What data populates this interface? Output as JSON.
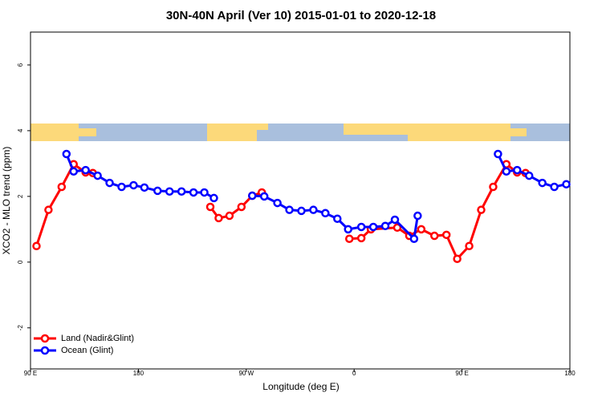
{
  "chart_data": {
    "type": "line",
    "title": "30N-40N April (Ver 10)   2015-01-01 to 2020-12-18",
    "x_label": "Longitude (deg E)",
    "y_label": "XCO2 - MLO trend (ppm)",
    "xlim": [
      90,
      540
    ],
    "xticks": [
      {
        "value": 90,
        "label": "90 E"
      },
      {
        "value": 180,
        "label": "180"
      },
      {
        "value": 270,
        "label": "90 W"
      },
      {
        "value": 360,
        "label": "0"
      },
      {
        "value": 450,
        "label": "90 E"
      },
      {
        "value": 540,
        "label": "180"
      }
    ],
    "ylim": [
      -3.25,
      7
    ],
    "yticks": [
      -2,
      0,
      2,
      4,
      6
    ],
    "legend": "bottom-left",
    "series": [
      {
        "name": "Land (Nadir&Glint)",
        "color": "#ff0000",
        "x": [
          95,
          105,
          116,
          126,
          136,
          142,
          null,
          240,
          247,
          256,
          266,
          275,
          283,
          null,
          356,
          366,
          374,
          396,
          406,
          416,
          427,
          437,
          446,
          456,
          466,
          476,
          487,
          496,
          503
        ],
        "values": [
          0.49,
          1.59,
          2.29,
          2.98,
          2.73,
          2.71,
          null,
          1.68,
          1.34,
          1.41,
          1.68,
          2.02,
          2.12,
          null,
          0.71,
          0.73,
          1.0,
          1.05,
          0.8,
          1.0,
          0.8,
          0.83,
          0.1,
          0.49,
          1.59,
          2.29,
          2.98,
          2.73,
          2.71
        ]
      },
      {
        "name": "Ocean (Glint)",
        "color": "#0000ff",
        "x": [
          120,
          126,
          136,
          146,
          156,
          166,
          176,
          185,
          196,
          206,
          216,
          226,
          235,
          243,
          null,
          275,
          285,
          296,
          306,
          316,
          326,
          336,
          346,
          355,
          366,
          376,
          386,
          394,
          410,
          413,
          null,
          480,
          487,
          496,
          506,
          517,
          527,
          537
        ],
        "values": [
          3.29,
          2.76,
          2.8,
          2.63,
          2.41,
          2.29,
          2.34,
          2.27,
          2.17,
          2.15,
          2.15,
          2.12,
          2.12,
          1.95,
          null,
          2.02,
          2.0,
          1.8,
          1.59,
          1.56,
          1.59,
          1.49,
          1.32,
          1.0,
          1.07,
          1.07,
          1.1,
          1.29,
          0.71,
          1.41,
          null,
          3.29,
          2.76,
          2.8,
          2.63,
          2.41,
          2.29,
          2.37
        ]
      }
    ]
  }
}
